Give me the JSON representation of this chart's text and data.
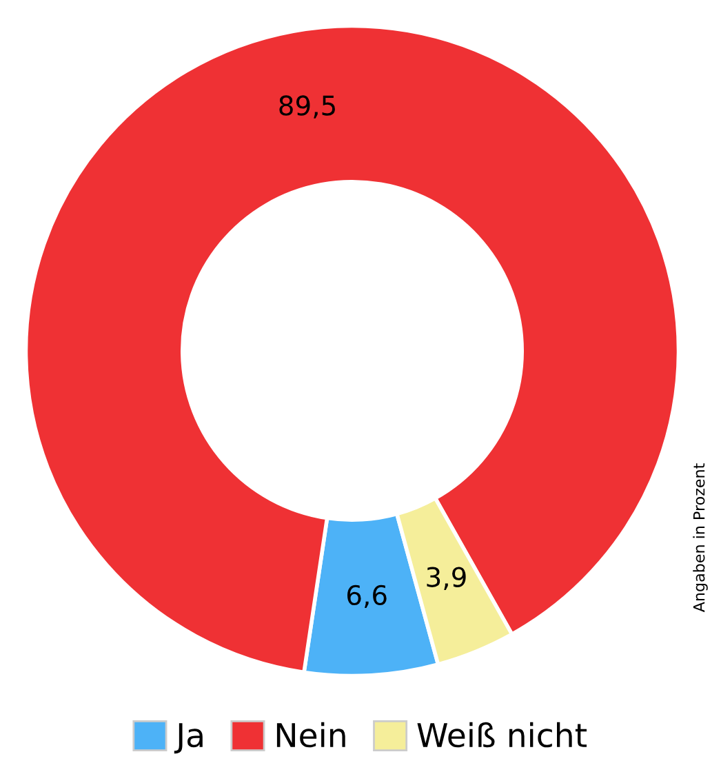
{
  "chart_data": {
    "type": "donut",
    "categories": [
      "Ja",
      "Nein",
      "Weiß nicht"
    ],
    "values": [
      6.6,
      89.5,
      3.9
    ],
    "colors": [
      "#4db2f7",
      "#ef3134",
      "#f5ee9a"
    ],
    "value_labels": [
      "6,6",
      "89,5",
      "3,9"
    ],
    "legend": "bottom",
    "annotations": [
      "Angaben in Prozent"
    ]
  }
}
